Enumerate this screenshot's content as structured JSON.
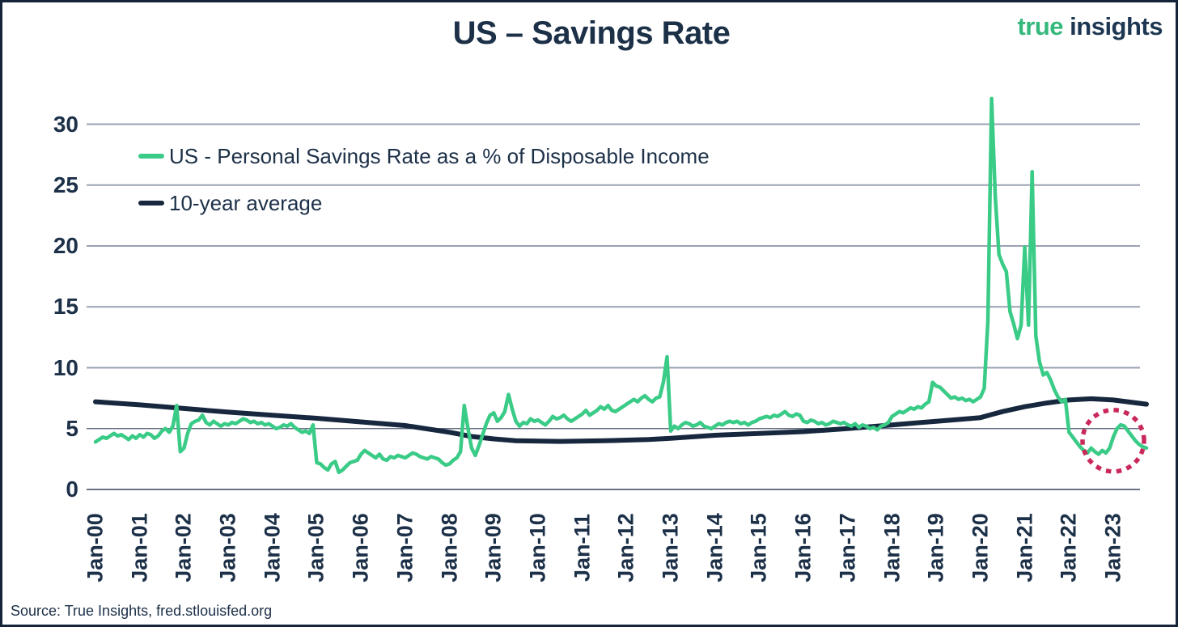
{
  "header": {
    "title": "US – Savings Rate",
    "logo": {
      "word1": "true",
      "word2": "insights",
      "green": "#35b87c",
      "navy": "#1d3752"
    }
  },
  "footer": {
    "source": "Source: True Insights, fred.stlouisfed.org"
  },
  "chart_data": {
    "type": "line",
    "title": "US – Savings Rate",
    "xlabel": "",
    "ylabel": "",
    "x_start": "Jan-2000",
    "x_end": "Oct-2023",
    "frequency": "monthly",
    "x_tick_labels": [
      "Jan-00",
      "Jan-01",
      "Jan-02",
      "Jan-03",
      "Jan-04",
      "Jan-05",
      "Jan-06",
      "Jan-07",
      "Jan-08",
      "Jan-09",
      "Jan-10",
      "Jan-11",
      "Jan-12",
      "Jan-13",
      "Jan-14",
      "Jan-15",
      "Jan-16",
      "Jan-17",
      "Jan-18",
      "Jan-19",
      "Jan-20",
      "Jan-21",
      "Jan-22",
      "Jan-23"
    ],
    "y_ticks": [
      0,
      5,
      10,
      15,
      20,
      25,
      30
    ],
    "ylim": [
      0,
      33
    ],
    "grid": "horizontal",
    "legend_position": "top-left-inside",
    "colors": {
      "savings": "#3acb87",
      "average": "#16273e",
      "annotation": "#c9285a",
      "gridline": "#9aa2b2",
      "axis": "#6a7382"
    },
    "series": [
      {
        "name": "US - Personal Savings Rate as a % of Disposable Income",
        "color": "#3acb87",
        "values": [
          3.9,
          4.1,
          4.3,
          4.2,
          4.4,
          4.6,
          4.4,
          4.5,
          4.3,
          4.1,
          4.4,
          4.2,
          4.5,
          4.3,
          4.6,
          4.5,
          4.2,
          4.4,
          4.8,
          5.0,
          4.7,
          5.2,
          6.9,
          3.1,
          3.4,
          4.6,
          5.4,
          5.6,
          5.7,
          6.1,
          5.5,
          5.3,
          5.6,
          5.4,
          5.2,
          5.4,
          5.3,
          5.5,
          5.4,
          5.6,
          5.8,
          5.7,
          5.5,
          5.6,
          5.4,
          5.5,
          5.3,
          5.4,
          5.2,
          5.0,
          5.1,
          5.3,
          5.2,
          5.4,
          5.1,
          4.9,
          4.7,
          4.8,
          4.6,
          5.3,
          2.2,
          2.1,
          1.8,
          1.6,
          2.1,
          2.3,
          1.4,
          1.6,
          1.9,
          2.2,
          2.3,
          2.4,
          2.9,
          3.2,
          3.0,
          2.8,
          2.6,
          2.9,
          2.5,
          2.4,
          2.7,
          2.6,
          2.8,
          2.7,
          2.6,
          2.8,
          3.0,
          2.9,
          2.7,
          2.6,
          2.5,
          2.7,
          2.6,
          2.5,
          2.2,
          2.0,
          2.1,
          2.4,
          2.6,
          3.1,
          6.9,
          5.0,
          3.4,
          2.8,
          3.6,
          4.5,
          5.4,
          6.1,
          6.3,
          5.6,
          5.9,
          6.4,
          7.8,
          6.6,
          5.6,
          5.2,
          5.5,
          5.4,
          5.8,
          5.6,
          5.7,
          5.5,
          5.3,
          5.6,
          6.0,
          5.8,
          5.9,
          6.1,
          5.8,
          5.6,
          5.8,
          6.0,
          6.2,
          6.5,
          6.1,
          6.3,
          6.5,
          6.8,
          6.6,
          6.9,
          6.5,
          6.4,
          6.6,
          6.8,
          7.0,
          7.2,
          7.4,
          7.2,
          7.5,
          7.7,
          7.4,
          7.2,
          7.5,
          7.6,
          8.8,
          10.9,
          4.8,
          5.2,
          5.0,
          5.3,
          5.5,
          5.4,
          5.2,
          5.3,
          5.5,
          5.2,
          5.1,
          5.0,
          5.2,
          5.4,
          5.3,
          5.5,
          5.6,
          5.5,
          5.6,
          5.4,
          5.5,
          5.3,
          5.5,
          5.6,
          5.8,
          5.9,
          6.0,
          5.9,
          6.1,
          6.0,
          6.2,
          6.4,
          6.1,
          6.0,
          6.2,
          6.1,
          5.6,
          5.5,
          5.7,
          5.6,
          5.4,
          5.5,
          5.3,
          5.4,
          5.6,
          5.5,
          5.4,
          5.5,
          5.3,
          5.2,
          5.4,
          5.1,
          5.3,
          5.2,
          5.0,
          5.1,
          4.9,
          5.2,
          5.3,
          5.5,
          6.0,
          6.2,
          6.4,
          6.3,
          6.5,
          6.7,
          6.6,
          6.8,
          6.7,
          7.0,
          7.2,
          8.8,
          8.5,
          8.4,
          8.1,
          7.8,
          7.5,
          7.6,
          7.4,
          7.5,
          7.3,
          7.4,
          7.2,
          7.4,
          7.6,
          8.3,
          13.8,
          32.1,
          24.0,
          19.3,
          18.5,
          17.9,
          14.6,
          13.6,
          12.4,
          13.5,
          19.9,
          13.5,
          26.1,
          12.6,
          10.5,
          9.4,
          9.6,
          9.0,
          8.2,
          7.6,
          7.2,
          7.4,
          4.7,
          4.3,
          3.9,
          3.5,
          3.2,
          3.0,
          3.4,
          3.1,
          2.9,
          3.2,
          3.0,
          3.4,
          4.3,
          5.0,
          5.3,
          5.2,
          4.8,
          4.4,
          4.0,
          3.7,
          3.5,
          3.4
        ]
      },
      {
        "name": "10-year average",
        "color": "#16273e",
        "points": [
          [
            0,
            7.2
          ],
          [
            12,
            6.95
          ],
          [
            24,
            6.65
          ],
          [
            36,
            6.35
          ],
          [
            48,
            6.1
          ],
          [
            60,
            5.85
          ],
          [
            72,
            5.55
          ],
          [
            84,
            5.25
          ],
          [
            96,
            4.7
          ],
          [
            102,
            4.35
          ],
          [
            108,
            4.15
          ],
          [
            114,
            4.0
          ],
          [
            126,
            3.95
          ],
          [
            138,
            4.0
          ],
          [
            150,
            4.1
          ],
          [
            156,
            4.2
          ],
          [
            168,
            4.45
          ],
          [
            180,
            4.6
          ],
          [
            192,
            4.75
          ],
          [
            204,
            5.0
          ],
          [
            216,
            5.3
          ],
          [
            228,
            5.6
          ],
          [
            234,
            5.75
          ],
          [
            240,
            5.9
          ],
          [
            243,
            6.15
          ],
          [
            246,
            6.4
          ],
          [
            252,
            6.8
          ],
          [
            258,
            7.1
          ],
          [
            264,
            7.35
          ],
          [
            270,
            7.45
          ],
          [
            276,
            7.35
          ],
          [
            285,
            7.0
          ]
        ]
      }
    ],
    "annotation": {
      "type": "dotted-circle",
      "color": "#c9285a",
      "center_month": 276,
      "center_value": 4.0,
      "radius_px": 38
    }
  }
}
